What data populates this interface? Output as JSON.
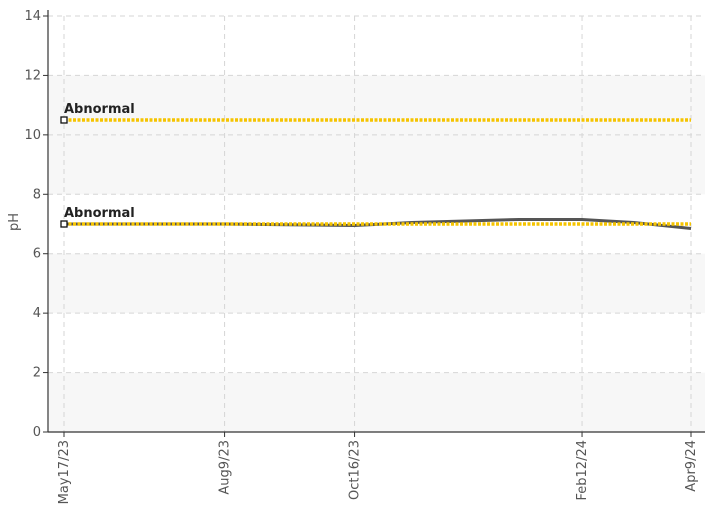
{
  "chart_data": {
    "type": "line",
    "title": "",
    "xlabel": "",
    "ylabel": "pH",
    "ylim": [
      0,
      14
    ],
    "yticks": [
      0,
      2,
      4,
      6,
      8,
      10,
      12,
      14
    ],
    "x_ticks": [
      "May17/23",
      "Aug9/23",
      "Oct16/23",
      "Feb12/24",
      "Apr9/24"
    ],
    "x_tick_dates": [
      "2023-05-17",
      "2023-08-09",
      "2023-10-16",
      "2024-02-12",
      "2024-04-09"
    ],
    "grid": true,
    "bands": [
      [
        0,
        2
      ],
      [
        4,
        6
      ],
      [
        8,
        12
      ]
    ],
    "series": [
      {
        "color": "#555555",
        "points": [
          {
            "x": "2023-05-17",
            "y": 7.0
          },
          {
            "x": "2023-08-09",
            "y": 7.0
          },
          {
            "x": "2023-10-16",
            "y": 6.95
          },
          {
            "x": "2023-11-15",
            "y": 7.05
          },
          {
            "x": "2024-01-10",
            "y": 7.15
          },
          {
            "x": "2024-02-12",
            "y": 7.15
          },
          {
            "x": "2024-03-10",
            "y": 7.05
          },
          {
            "x": "2024-04-09",
            "y": 6.85
          }
        ]
      }
    ],
    "reference_lines": [
      {
        "label": "Abnormal",
        "y": 10.5,
        "color": "#f5c400"
      },
      {
        "label": "Abnormal",
        "y": 7.0,
        "color": "#f5c400"
      }
    ]
  }
}
